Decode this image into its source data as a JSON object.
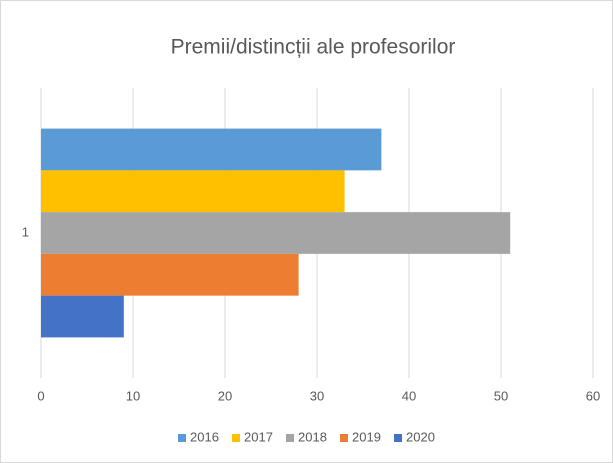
{
  "chart_data": {
    "type": "bar",
    "orientation": "horizontal",
    "title": "Premii/distincții ale profesorilor",
    "categories": [
      "1"
    ],
    "series": [
      {
        "name": "2016",
        "color": "#5b9bd5",
        "values": [
          37
        ]
      },
      {
        "name": "2017",
        "color": "#ffc000",
        "values": [
          33
        ]
      },
      {
        "name": "2018",
        "color": "#a5a5a5",
        "values": [
          51
        ]
      },
      {
        "name": "2019",
        "color": "#ed7d31",
        "values": [
          28
        ]
      },
      {
        "name": "2020",
        "color": "#4472c4",
        "values": [
          9
        ]
      }
    ],
    "xlim": [
      0,
      60
    ],
    "xticks": [
      0,
      10,
      20,
      30,
      40,
      50,
      60
    ],
    "grid": true,
    "legend": "bottom"
  }
}
